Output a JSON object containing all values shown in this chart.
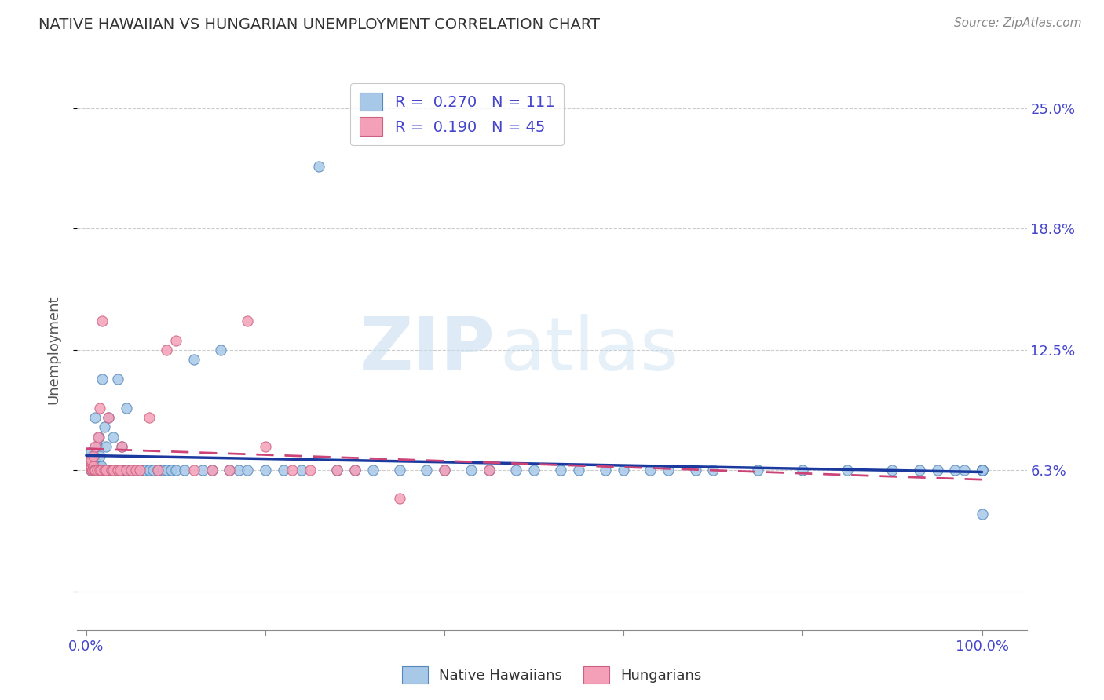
{
  "title": "NATIVE HAWAIIAN VS HUNGARIAN UNEMPLOYMENT CORRELATION CHART",
  "source": "Source: ZipAtlas.com",
  "ylabel": "Unemployment",
  "blue_color": "#a8c8e8",
  "blue_edge_color": "#5588bb",
  "blue_line_color": "#1a3a9f",
  "pink_color": "#f4a0b8",
  "pink_edge_color": "#cc6080",
  "pink_line_color": "#cc4477",
  "blue_R": 0.27,
  "blue_N": 111,
  "pink_R": 0.19,
  "pink_N": 45,
  "ytick_positions": [
    0.0,
    0.063,
    0.125,
    0.188,
    0.25
  ],
  "ytick_labels": [
    "",
    "6.3%",
    "12.5%",
    "18.8%",
    "25.0%"
  ],
  "axis_color": "#4444cc",
  "watermark_zip": "ZIP",
  "watermark_atlas": "atlas",
  "nh_x": [
    0.005,
    0.005,
    0.005,
    0.005,
    0.005,
    0.005,
    0.005,
    0.005,
    0.005,
    0.005,
    0.007,
    0.007,
    0.007,
    0.007,
    0.008,
    0.008,
    0.008,
    0.008,
    0.009,
    0.009,
    0.009,
    0.01,
    0.01,
    0.01,
    0.01,
    0.01,
    0.012,
    0.012,
    0.012,
    0.013,
    0.014,
    0.014,
    0.015,
    0.015,
    0.015,
    0.016,
    0.017,
    0.018,
    0.018,
    0.02,
    0.02,
    0.022,
    0.022,
    0.025,
    0.025,
    0.027,
    0.03,
    0.03,
    0.032,
    0.035,
    0.035,
    0.038,
    0.04,
    0.04,
    0.043,
    0.045,
    0.048,
    0.05,
    0.055,
    0.06,
    0.065,
    0.07,
    0.075,
    0.08,
    0.085,
    0.09,
    0.095,
    0.1,
    0.11,
    0.12,
    0.13,
    0.14,
    0.15,
    0.16,
    0.17,
    0.18,
    0.2,
    0.22,
    0.24,
    0.26,
    0.28,
    0.3,
    0.32,
    0.35,
    0.38,
    0.4,
    0.43,
    0.45,
    0.48,
    0.5,
    0.53,
    0.55,
    0.58,
    0.6,
    0.63,
    0.65,
    0.68,
    0.7,
    0.75,
    0.8,
    0.85,
    0.9,
    0.93,
    0.95,
    0.97,
    0.98,
    1.0,
    1.0,
    1.0,
    1.0,
    1.0
  ],
  "nh_y": [
    0.063,
    0.063,
    0.065,
    0.065,
    0.066,
    0.067,
    0.068,
    0.069,
    0.07,
    0.072,
    0.063,
    0.063,
    0.065,
    0.068,
    0.063,
    0.064,
    0.066,
    0.07,
    0.063,
    0.065,
    0.068,
    0.063,
    0.063,
    0.065,
    0.067,
    0.09,
    0.063,
    0.065,
    0.075,
    0.063,
    0.063,
    0.08,
    0.063,
    0.065,
    0.07,
    0.063,
    0.065,
    0.063,
    0.11,
    0.063,
    0.085,
    0.063,
    0.075,
    0.063,
    0.09,
    0.063,
    0.063,
    0.08,
    0.063,
    0.063,
    0.11,
    0.063,
    0.063,
    0.075,
    0.063,
    0.095,
    0.063,
    0.063,
    0.063,
    0.063,
    0.063,
    0.063,
    0.063,
    0.063,
    0.063,
    0.063,
    0.063,
    0.063,
    0.063,
    0.12,
    0.063,
    0.063,
    0.125,
    0.063,
    0.063,
    0.063,
    0.063,
    0.063,
    0.063,
    0.22,
    0.063,
    0.063,
    0.063,
    0.063,
    0.063,
    0.063,
    0.063,
    0.063,
    0.063,
    0.063,
    0.063,
    0.063,
    0.063,
    0.063,
    0.063,
    0.063,
    0.063,
    0.063,
    0.063,
    0.063,
    0.063,
    0.063,
    0.063,
    0.063,
    0.063,
    0.063,
    0.063,
    0.063,
    0.063,
    0.04,
    0.063
  ],
  "hu_x": [
    0.005,
    0.005,
    0.005,
    0.005,
    0.005,
    0.007,
    0.008,
    0.008,
    0.009,
    0.01,
    0.01,
    0.012,
    0.013,
    0.015,
    0.015,
    0.017,
    0.018,
    0.02,
    0.022,
    0.025,
    0.028,
    0.03,
    0.035,
    0.038,
    0.04,
    0.045,
    0.05,
    0.055,
    0.06,
    0.07,
    0.08,
    0.09,
    0.1,
    0.12,
    0.14,
    0.16,
    0.18,
    0.2,
    0.23,
    0.25,
    0.28,
    0.3,
    0.35,
    0.4,
    0.45
  ],
  "hu_y": [
    0.063,
    0.064,
    0.065,
    0.067,
    0.068,
    0.063,
    0.065,
    0.07,
    0.063,
    0.063,
    0.075,
    0.063,
    0.08,
    0.063,
    0.095,
    0.063,
    0.14,
    0.063,
    0.063,
    0.09,
    0.063,
    0.063,
    0.063,
    0.063,
    0.075,
    0.063,
    0.063,
    0.063,
    0.063,
    0.09,
    0.063,
    0.125,
    0.13,
    0.063,
    0.063,
    0.063,
    0.14,
    0.075,
    0.063,
    0.063,
    0.063,
    0.063,
    0.048,
    0.063,
    0.063
  ]
}
